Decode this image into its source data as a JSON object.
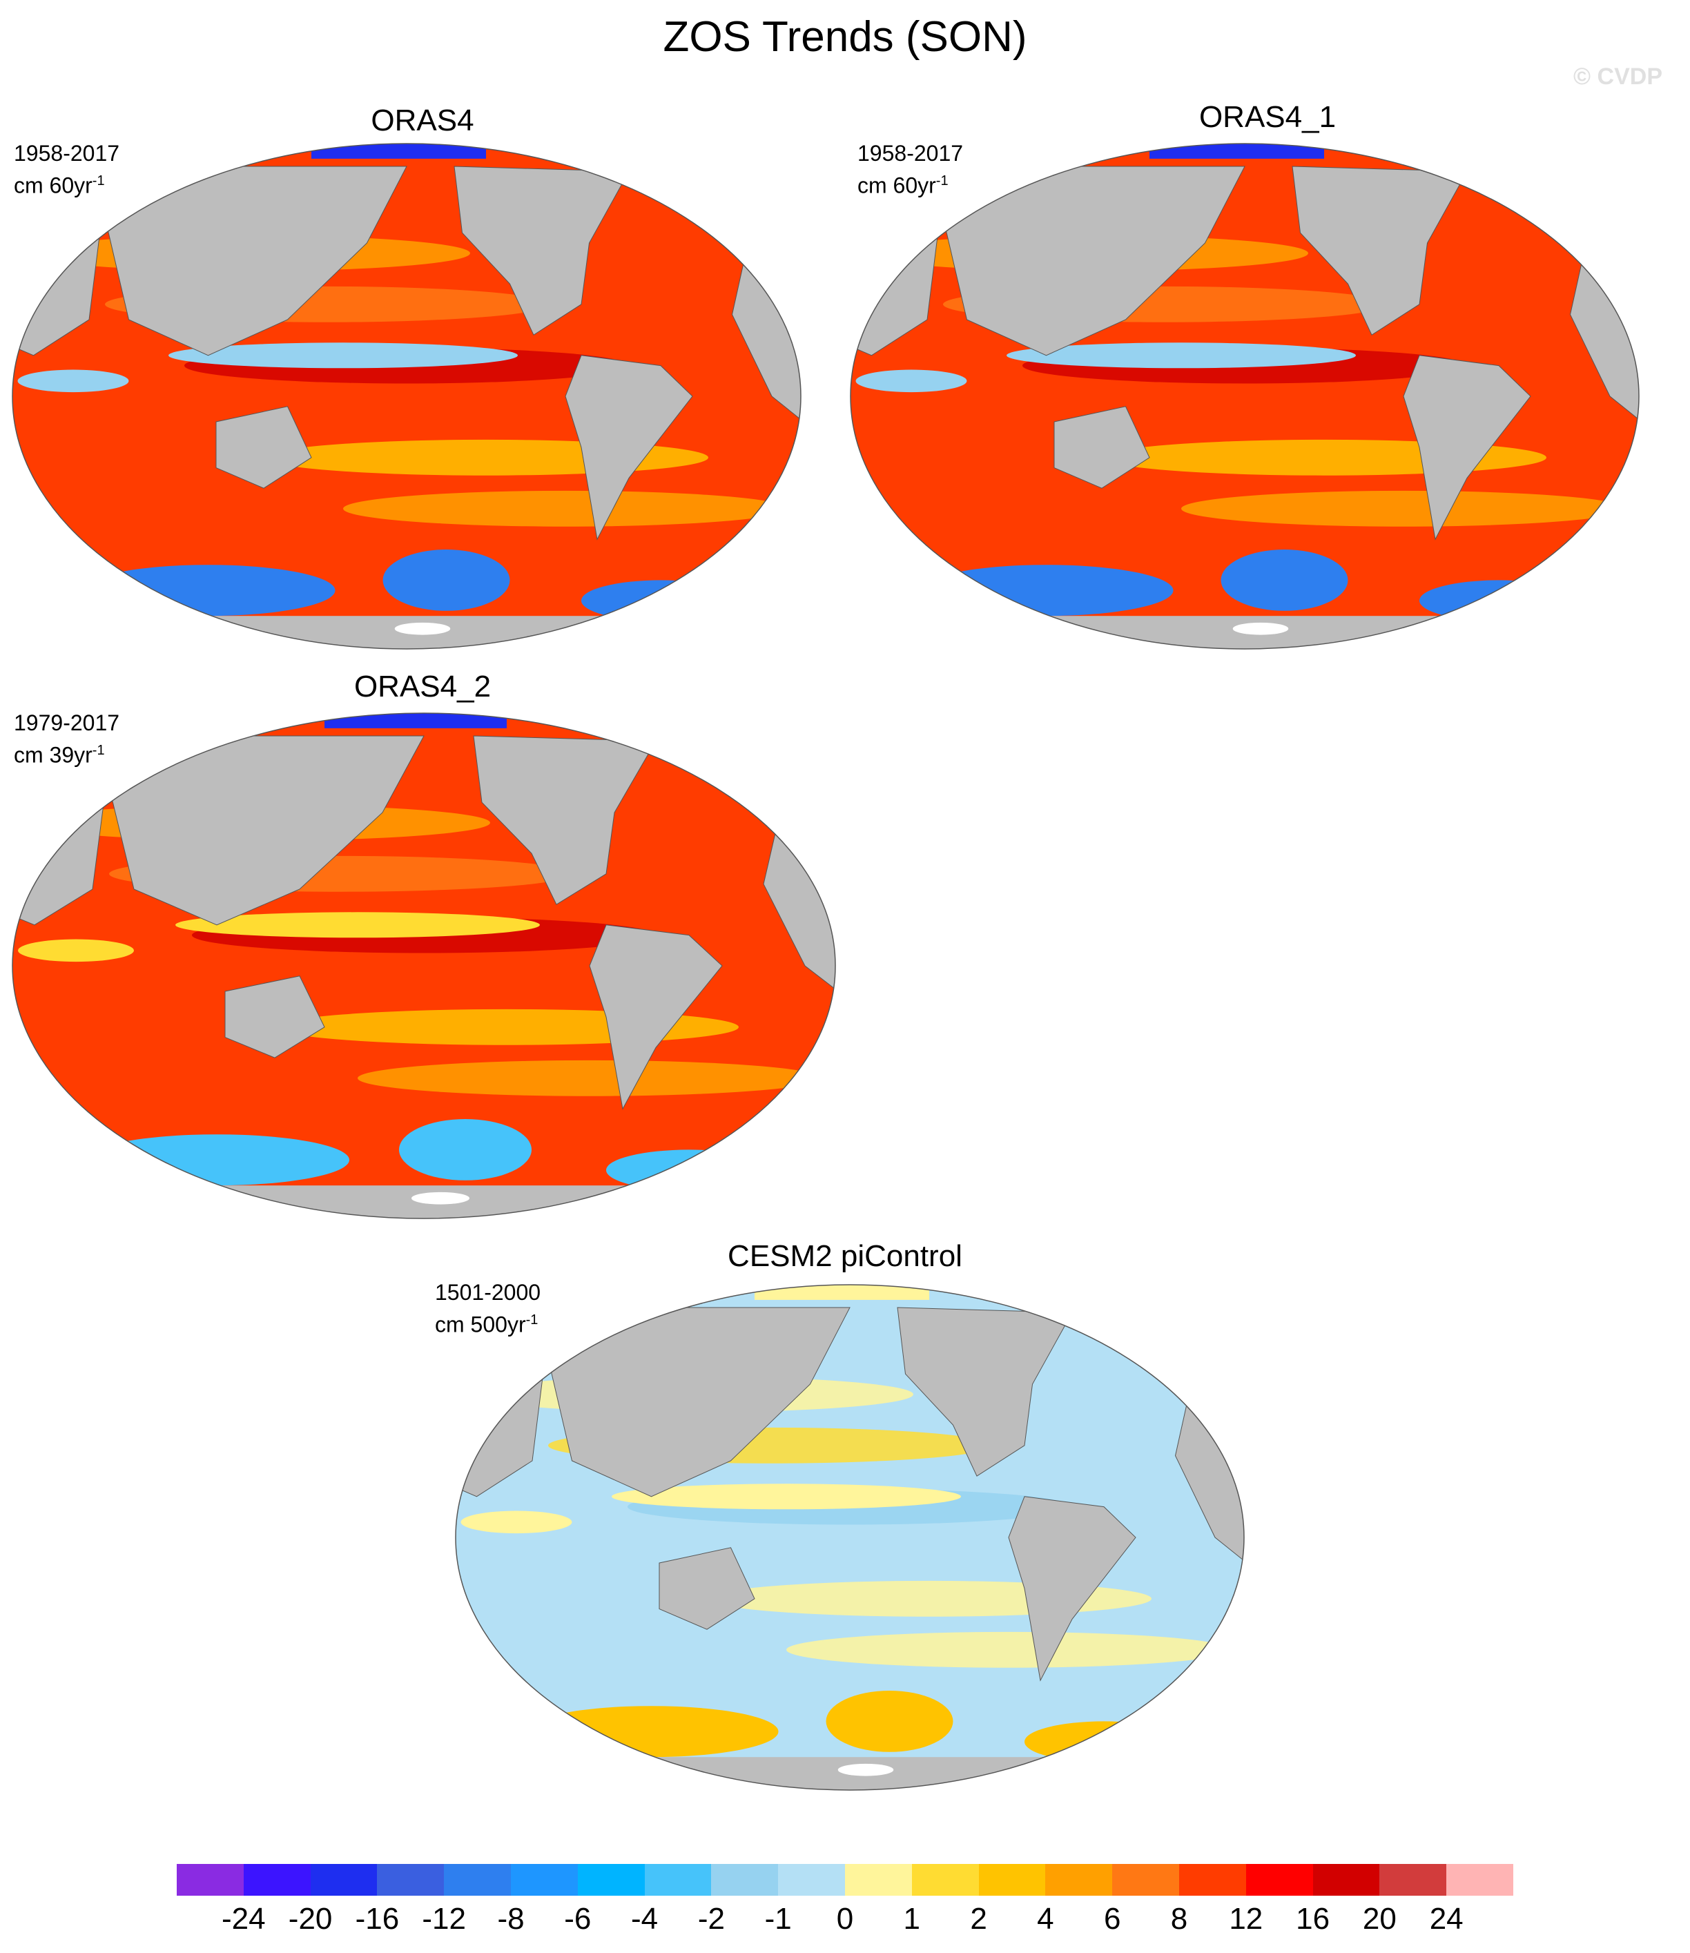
{
  "title": "ZOS Trends (SON)",
  "watermark": "© CVDP",
  "panels": [
    {
      "name": "ORAS4",
      "period": "1958-2017",
      "unit": "cm 60yr",
      "exp": "-1",
      "style": "warm"
    },
    {
      "name": "ORAS4_1",
      "period": "1958-2017",
      "unit": "cm 60yr",
      "exp": "-1",
      "style": "warm"
    },
    {
      "name": "ORAS4_2",
      "period": "1979-2017",
      "unit": "cm 39yr",
      "exp": "-1",
      "style": "warm2"
    },
    {
      "name": "CESM2 piControl",
      "period": "1501-2000",
      "unit": "cm 500yr",
      "exp": "-1",
      "style": "cool"
    }
  ],
  "colorbar": {
    "colors": [
      "#8a2be2",
      "#3c14ff",
      "#1e2ef0",
      "#3a5fe0",
      "#2e7fef",
      "#1e96ff",
      "#00b4ff",
      "#46c3fa",
      "#96d2f0",
      "#b4e0f5",
      "#fff59b",
      "#ffdc32",
      "#ffc300",
      "#ffa000",
      "#ff7814",
      "#ff3c00",
      "#ff0000",
      "#d20000",
      "#d23c3c",
      "#ffb4b4"
    ],
    "labels": [
      "-24",
      "-20",
      "-16",
      "-12",
      "-8",
      "-6",
      "-4",
      "-2",
      "-1",
      "0",
      "1",
      "2",
      "4",
      "6",
      "8",
      "12",
      "16",
      "20",
      "24"
    ]
  }
}
